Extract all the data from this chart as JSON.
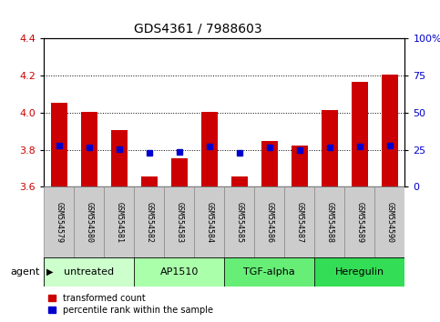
{
  "title": "GDS4361 / 7988603",
  "samples": [
    "GSM554579",
    "GSM554580",
    "GSM554581",
    "GSM554582",
    "GSM554583",
    "GSM554584",
    "GSM554585",
    "GSM554586",
    "GSM554587",
    "GSM554588",
    "GSM554589",
    "GSM554590"
  ],
  "red_values": [
    4.055,
    4.005,
    3.905,
    3.655,
    3.755,
    4.005,
    3.655,
    3.845,
    3.825,
    4.015,
    4.165,
    4.205
  ],
  "blue_values": [
    3.825,
    3.815,
    3.805,
    3.785,
    3.79,
    3.82,
    3.785,
    3.815,
    3.8,
    3.815,
    3.82,
    3.825
  ],
  "ylim_left": [
    3.6,
    4.4
  ],
  "ylim_right": [
    0,
    100
  ],
  "yticks_left": [
    3.6,
    3.8,
    4.0,
    4.2,
    4.4
  ],
  "yticks_right": [
    0,
    25,
    50,
    75,
    100
  ],
  "ytick_labels_right": [
    "0",
    "25",
    "50",
    "75",
    "100%"
  ],
  "grid_values": [
    3.8,
    4.0,
    4.2
  ],
  "bar_bottom": 3.6,
  "bar_width": 0.55,
  "red_color": "#cc0000",
  "blue_color": "#0000cc",
  "agent_groups": [
    {
      "label": "untreated",
      "indices": [
        0,
        1,
        2
      ],
      "color": "#ccffcc"
    },
    {
      "label": "AP1510",
      "indices": [
        3,
        4,
        5
      ],
      "color": "#aaffaa"
    },
    {
      "label": "TGF-alpha",
      "indices": [
        6,
        7,
        8
      ],
      "color": "#66ee77"
    },
    {
      "label": "Heregulin",
      "indices": [
        9,
        10,
        11
      ],
      "color": "#33dd55"
    }
  ],
  "sample_bg_color": "#cccccc",
  "plot_bg_color": "#ffffff",
  "legend_red_label": "transformed count",
  "legend_blue_label": "percentile rank within the sample",
  "xlabel_agent": "agent",
  "title_fontsize": 10,
  "tick_fontsize": 8,
  "sample_fontsize": 6,
  "agent_fontsize": 8,
  "legend_fontsize": 7
}
